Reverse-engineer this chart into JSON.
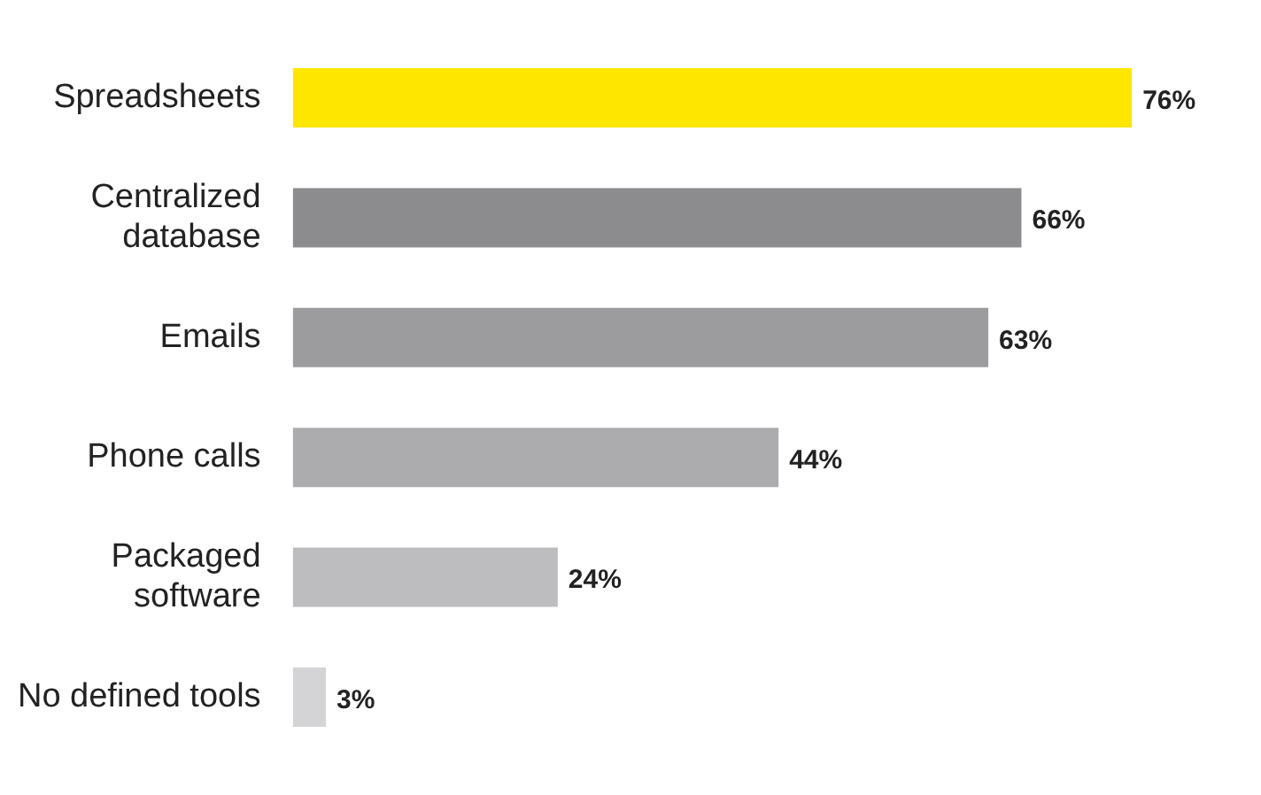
{
  "chart_data": {
    "type": "bar",
    "orientation": "horizontal",
    "categories": [
      "Spreadsheets",
      "Centralized\ndatabase",
      "Emails",
      "Phone calls",
      "Packaged\nsoftware",
      "No defined tools"
    ],
    "values": [
      76,
      66,
      63,
      44,
      24,
      3
    ],
    "colors": [
      "#ffe600",
      "#8c8c8e",
      "#9c9c9e",
      "#acacae",
      "#bdbdbf",
      "#d4d4d6"
    ],
    "value_labels": [
      "76%",
      "66%",
      "63%",
      "44%",
      "24%",
      "3%"
    ],
    "tick_labels": "y"
  }
}
